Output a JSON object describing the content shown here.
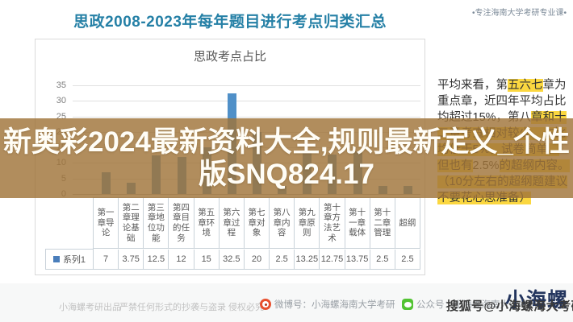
{
  "page": {
    "title": "思政2008-2023年每年题目进行考点归类汇总",
    "top_right_note": "•专注海南大学考研专业课•"
  },
  "chart_data": {
    "type": "bar",
    "title": "思政考点占比",
    "categories": [
      "第一章导论",
      "第二章理论基础",
      "第三章地位功能",
      "第四章目的任务",
      "第五章环境",
      "第六章过程",
      "第七章对象",
      "第八章内容",
      "第九章原则",
      "第十章方法艺术",
      "第十一章载体",
      "第十二章管理",
      "超纲"
    ],
    "series": [
      {
        "name": "系列1",
        "values": [
          7,
          3.75,
          12.5,
          12,
          15,
          32.5,
          20,
          2.5,
          13.25,
          12.75,
          13.75,
          2.5,
          2.5
        ]
      }
    ],
    "xlabel": "",
    "ylabel": "",
    "ylim": [
      0,
      35
    ],
    "yticks": [
      35,
      30,
      25,
      20,
      15,
      10,
      5,
      0
    ],
    "grid": true,
    "bar_color": "#5090c8",
    "legend_position": "data-table-below-chart"
  },
  "notes": {
    "segments": [
      {
        "text": "平均来看，第",
        "highlight": false
      },
      {
        "text": "五六七",
        "highlight": true
      },
      {
        "text": "章为重点章，近四年平均占比均超过15%，第八",
        "highlight": false
      },
      {
        "text": "章和十二章考查相对较少，占比均低于5%，试卷简单，但也有",
        "highlight": true
      },
      {
        "text": "2.5%",
        "highlight": false
      },
      {
        "text": "的超纲内容。（10分左右的超纲题建议不要花心思准备）",
        "highlight": true
      }
    ]
  },
  "overlay": {
    "line1": "新奥彩2024最新资料大全,规则最新定义_个性",
    "line2": "版SNQ824.17"
  },
  "footer": {
    "produced_by": "小海螺考研出品",
    "warning": "严禁任何形式的抄袭与盗录 侵权必究",
    "weibo_label": "微博号：小海螺海南大学考研",
    "wechat_label": "公众号：小海螺海南大学考研",
    "logo": "小海螺",
    "sohu_watermark": "搜狐号@小海螺海大考研"
  },
  "colors": {
    "title_accent": "#2580a6",
    "bar": "#5090c8",
    "highlight": "#fbd740",
    "overlay_band": "rgba(160,116,57,0.82)",
    "weibo_icon": "#e8502e",
    "wechat_icon": "#52c332",
    "logo": "#23355e"
  }
}
